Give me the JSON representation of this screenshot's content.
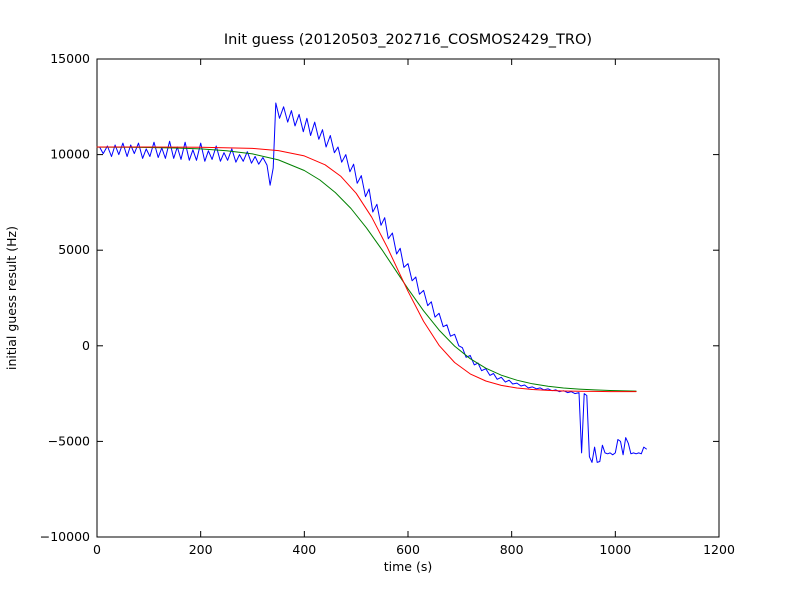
{
  "chart_data": {
    "type": "line",
    "title": "Init guess (20120503_202716_COSMOS2429_TRO)",
    "xlabel": "time (s)",
    "ylabel": "initial guess result (Hz)",
    "xlim": [
      0,
      1200
    ],
    "ylim": [
      -10000,
      15000
    ],
    "xticks": [
      0,
      200,
      400,
      600,
      800,
      1000,
      1200
    ],
    "yticks": [
      -10000,
      -5000,
      0,
      5000,
      10000,
      15000
    ],
    "grid": false,
    "legend": null,
    "background": "#ffffff",
    "frame_color": "#000000",
    "series": [
      {
        "name": "blue-data",
        "color": "#0000ff",
        "points": [
          [
            5,
            10400
          ],
          [
            12,
            10050
          ],
          [
            20,
            10450
          ],
          [
            28,
            9900
          ],
          [
            35,
            10500
          ],
          [
            42,
            10000
          ],
          [
            50,
            10600
          ],
          [
            58,
            9900
          ],
          [
            65,
            10500
          ],
          [
            72,
            10050
          ],
          [
            80,
            10600
          ],
          [
            88,
            9800
          ],
          [
            95,
            10300
          ],
          [
            102,
            9900
          ],
          [
            110,
            10650
          ],
          [
            118,
            9850
          ],
          [
            125,
            10350
          ],
          [
            132,
            9800
          ],
          [
            140,
            10700
          ],
          [
            148,
            9800
          ],
          [
            155,
            10400
          ],
          [
            162,
            9750
          ],
          [
            170,
            10650
          ],
          [
            178,
            9700
          ],
          [
            185,
            10250
          ],
          [
            192,
            9700
          ],
          [
            200,
            10600
          ],
          [
            208,
            9650
          ],
          [
            215,
            10200
          ],
          [
            222,
            9750
          ],
          [
            230,
            10450
          ],
          [
            238,
            9650
          ],
          [
            245,
            10100
          ],
          [
            252,
            9700
          ],
          [
            260,
            10300
          ],
          [
            268,
            9600
          ],
          [
            275,
            10000
          ],
          [
            282,
            9650
          ],
          [
            290,
            10150
          ],
          [
            298,
            9550
          ],
          [
            305,
            9900
          ],
          [
            312,
            9500
          ],
          [
            320,
            9850
          ],
          [
            328,
            9450
          ],
          [
            334,
            8400
          ],
          [
            340,
            9300
          ],
          [
            345,
            12700
          ],
          [
            352,
            11900
          ],
          [
            360,
            12500
          ],
          [
            368,
            11700
          ],
          [
            375,
            12300
          ],
          [
            382,
            11500
          ],
          [
            390,
            12100
          ],
          [
            398,
            11200
          ],
          [
            405,
            11900
          ],
          [
            412,
            11000
          ],
          [
            420,
            11700
          ],
          [
            428,
            10800
          ],
          [
            435,
            11300
          ],
          [
            442,
            10400
          ],
          [
            450,
            11000
          ],
          [
            458,
            10100
          ],
          [
            465,
            10400
          ],
          [
            472,
            9600
          ],
          [
            480,
            10000
          ],
          [
            488,
            9100
          ],
          [
            495,
            9500
          ],
          [
            502,
            8500
          ],
          [
            510,
            8900
          ],
          [
            518,
            7800
          ],
          [
            525,
            8200
          ],
          [
            532,
            7000
          ],
          [
            540,
            7400
          ],
          [
            548,
            6300
          ],
          [
            555,
            6700
          ],
          [
            562,
            5600
          ],
          [
            570,
            5900
          ],
          [
            578,
            4800
          ],
          [
            585,
            5100
          ],
          [
            592,
            4100
          ],
          [
            600,
            4300
          ],
          [
            608,
            3400
          ],
          [
            615,
            3600
          ],
          [
            622,
            2700
          ],
          [
            630,
            2900
          ],
          [
            638,
            2100
          ],
          [
            645,
            2300
          ],
          [
            652,
            1500
          ],
          [
            660,
            1700
          ],
          [
            668,
            1000
          ],
          [
            675,
            1100
          ],
          [
            682,
            500
          ],
          [
            690,
            600
          ],
          [
            698,
            0
          ],
          [
            705,
            -100
          ],
          [
            712,
            -600
          ],
          [
            720,
            -500
          ],
          [
            728,
            -1000
          ],
          [
            735,
            -900
          ],
          [
            742,
            -1300
          ],
          [
            750,
            -1200
          ],
          [
            758,
            -1550
          ],
          [
            765,
            -1450
          ],
          [
            772,
            -1750
          ],
          [
            780,
            -1650
          ],
          [
            788,
            -1900
          ],
          [
            795,
            -1800
          ],
          [
            802,
            -2000
          ],
          [
            810,
            -1950
          ],
          [
            818,
            -2100
          ],
          [
            825,
            -2050
          ],
          [
            832,
            -2200
          ],
          [
            840,
            -2150
          ],
          [
            848,
            -2250
          ],
          [
            855,
            -2200
          ],
          [
            862,
            -2300
          ],
          [
            870,
            -2250
          ],
          [
            878,
            -2350
          ],
          [
            885,
            -2300
          ],
          [
            892,
            -2400
          ],
          [
            900,
            -2350
          ],
          [
            908,
            -2450
          ],
          [
            915,
            -2400
          ],
          [
            922,
            -2500
          ],
          [
            930,
            -2450
          ],
          [
            935,
            -5600
          ],
          [
            940,
            -2500
          ],
          [
            945,
            -2600
          ],
          [
            950,
            -5800
          ],
          [
            955,
            -6100
          ],
          [
            960,
            -5300
          ],
          [
            965,
            -6100
          ],
          [
            970,
            -6050
          ],
          [
            975,
            -5200
          ],
          [
            980,
            -5600
          ],
          [
            985,
            -5650
          ],
          [
            990,
            -5600
          ],
          [
            995,
            -5700
          ],
          [
            1000,
            -5600
          ],
          [
            1005,
            -4900
          ],
          [
            1010,
            -5000
          ],
          [
            1015,
            -5700
          ],
          [
            1020,
            -4800
          ],
          [
            1025,
            -5100
          ],
          [
            1030,
            -5650
          ],
          [
            1035,
            -5600
          ],
          [
            1040,
            -5650
          ],
          [
            1045,
            -5600
          ],
          [
            1050,
            -5650
          ],
          [
            1055,
            -5300
          ],
          [
            1060,
            -5400
          ]
        ]
      },
      {
        "name": "green-fit",
        "color": "#008000",
        "points": [
          [
            0,
            10392
          ],
          [
            50,
            10385
          ],
          [
            100,
            10371
          ],
          [
            150,
            10345
          ],
          [
            200,
            10296
          ],
          [
            250,
            10205
          ],
          [
            300,
            10034
          ],
          [
            350,
            9722
          ],
          [
            400,
            9170
          ],
          [
            430,
            8674
          ],
          [
            460,
            8013
          ],
          [
            490,
            7179
          ],
          [
            520,
            6166
          ],
          [
            550,
            5016
          ],
          [
            575,
            4000
          ],
          [
            600,
            2983
          ],
          [
            630,
            1833
          ],
          [
            660,
            821
          ],
          [
            690,
            -15
          ],
          [
            720,
            -674
          ],
          [
            750,
            -1173
          ],
          [
            780,
            -1538
          ],
          [
            810,
            -1800
          ],
          [
            840,
            -1986
          ],
          [
            870,
            -2115
          ],
          [
            900,
            -2205
          ],
          [
            930,
            -2266
          ],
          [
            960,
            -2309
          ],
          [
            990,
            -2338
          ],
          [
            1020,
            -2357
          ],
          [
            1040,
            -2367
          ]
        ]
      },
      {
        "name": "red-fit",
        "color": "#ff0000",
        "points": [
          [
            0,
            10400
          ],
          [
            100,
            10398
          ],
          [
            200,
            10387
          ],
          [
            300,
            10322
          ],
          [
            350,
            10207
          ],
          [
            400,
            9931
          ],
          [
            440,
            9468
          ],
          [
            470,
            8874
          ],
          [
            500,
            7977
          ],
          [
            530,
            6725
          ],
          [
            560,
            5153
          ],
          [
            580,
            4000
          ],
          [
            600,
            2848
          ],
          [
            630,
            1276
          ],
          [
            660,
            22
          ],
          [
            690,
            -875
          ],
          [
            720,
            -1468
          ],
          [
            750,
            -1843
          ],
          [
            780,
            -2071
          ],
          [
            810,
            -2207
          ],
          [
            840,
            -2288
          ],
          [
            870,
            -2335
          ],
          [
            900,
            -2362
          ],
          [
            930,
            -2378
          ],
          [
            960,
            -2387
          ],
          [
            990,
            -2393
          ],
          [
            1020,
            -2396
          ],
          [
            1040,
            -2397
          ]
        ]
      }
    ]
  }
}
